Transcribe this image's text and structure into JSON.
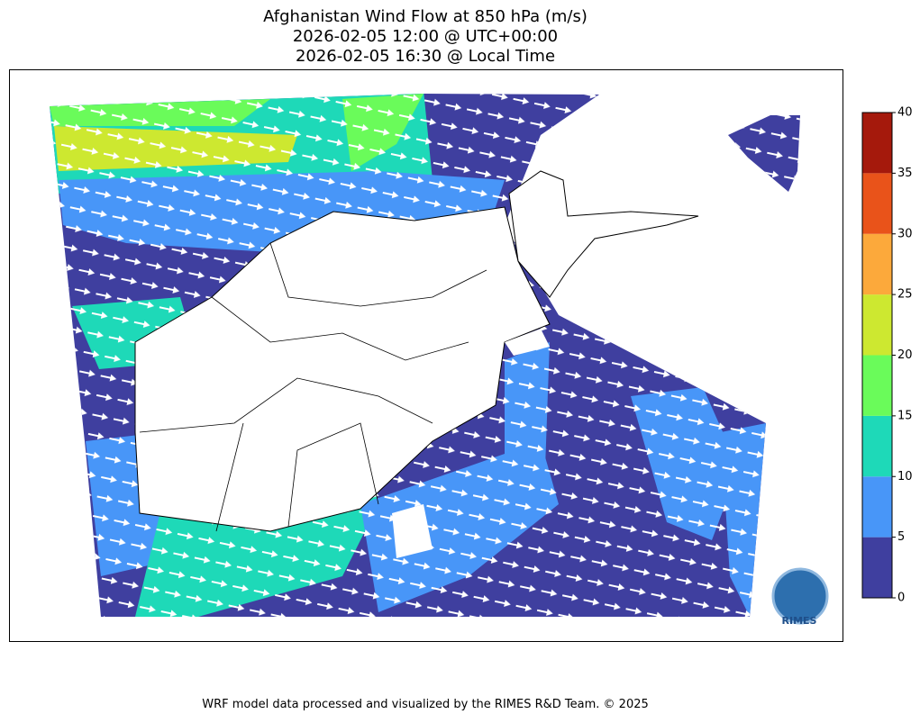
{
  "title": [
    "Afghanistan Wind Flow at 850 hPa (m/s)",
    "2026-02-05 12:00 @ UTC+00:00",
    "2026-02-05 16:30 @ Local Time"
  ],
  "colorbar": {
    "ticks": [
      0,
      5,
      10,
      15,
      20,
      25,
      30,
      35,
      40
    ],
    "colors": [
      "#3f3f9f",
      "#4896f8",
      "#1ed9b8",
      "#6afb5a",
      "#cde830",
      "#fca93b",
      "#e9531a",
      "#a5190c"
    ]
  },
  "logo": "RIMES",
  "footer": "WRF model data processed and visualized by the RIMES R&D Team. © 2025"
}
